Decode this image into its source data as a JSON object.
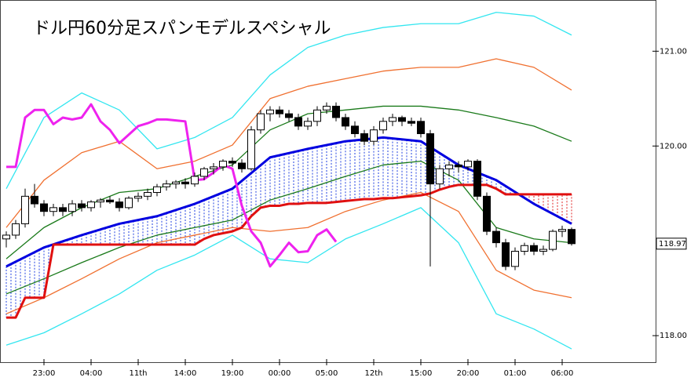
{
  "chart_data": {
    "type": "candlestick",
    "title": "ドル円60分足スパンモデルスペシャル",
    "categories": [
      null,
      null,
      null,
      null,
      "23:00",
      null,
      null,
      null,
      null,
      "04:00",
      null,
      null,
      null,
      null,
      "11th",
      null,
      null,
      null,
      null,
      "14:00",
      null,
      null,
      null,
      null,
      "19:00",
      null,
      null,
      null,
      null,
      "00:00",
      null,
      null,
      null,
      null,
      "05:00",
      null,
      null,
      null,
      null,
      "12th",
      null,
      null,
      null,
      null,
      "15:00",
      null,
      null,
      null,
      null,
      "20:00",
      null,
      null,
      null,
      null,
      "01:00",
      null,
      null,
      null,
      null,
      "06:00",
      null
    ],
    "open": [
      119.02,
      119.06,
      119.18,
      119.47,
      119.39,
      119.31,
      119.35,
      119.31,
      119.39,
      119.35,
      119.41,
      119.43,
      119.41,
      119.35,
      119.45,
      119.47,
      119.51,
      119.57,
      119.6,
      119.62,
      119.6,
      119.68,
      119.76,
      119.78,
      119.84,
      119.82,
      119.76,
      120.17,
      120.34,
      120.38,
      120.34,
      120.3,
      120.21,
      120.26,
      120.38,
      120.42,
      120.3,
      120.21,
      120.13,
      120.05,
      120.17,
      120.26,
      120.3,
      120.26,
      120.26,
      120.13,
      119.6,
      119.76,
      119.8,
      119.78,
      119.84,
      119.47,
      119.1,
      118.98,
      118.73,
      118.89,
      118.95,
      118.89,
      118.91,
      119.1,
      119.12
    ],
    "high": [
      119.1,
      119.22,
      119.55,
      119.6,
      119.43,
      119.39,
      119.39,
      119.43,
      119.43,
      119.43,
      119.45,
      119.47,
      119.45,
      119.47,
      119.51,
      119.55,
      119.6,
      119.64,
      119.64,
      119.66,
      119.72,
      119.78,
      119.82,
      119.86,
      119.88,
      119.86,
      120.21,
      120.38,
      120.42,
      120.42,
      120.38,
      120.34,
      120.3,
      120.42,
      120.46,
      120.46,
      120.34,
      120.26,
      120.17,
      120.21,
      120.3,
      120.34,
      120.32,
      120.3,
      120.3,
      120.17,
      119.8,
      119.84,
      119.84,
      119.86,
      119.86,
      119.51,
      119.14,
      119.02,
      118.93,
      118.98,
      118.98,
      118.95,
      119.12,
      119.16,
      119.14
    ],
    "low": [
      118.93,
      119.02,
      119.14,
      119.35,
      119.26,
      119.26,
      119.26,
      119.26,
      119.31,
      119.31,
      119.35,
      119.39,
      119.31,
      119.33,
      119.41,
      119.43,
      119.47,
      119.53,
      119.55,
      119.55,
      119.57,
      119.64,
      119.7,
      119.74,
      119.78,
      119.72,
      119.74,
      120.13,
      120.26,
      120.3,
      120.26,
      120.17,
      120.17,
      120.21,
      120.34,
      120.26,
      120.17,
      120.09,
      120.01,
      120.01,
      120.13,
      120.21,
      120.21,
      120.21,
      120.09,
      118.73,
      119.55,
      119.68,
      119.72,
      119.74,
      119.43,
      119.06,
      118.93,
      118.69,
      118.69,
      118.85,
      118.85,
      118.85,
      118.89,
      119.04,
      118.95
    ],
    "close": [
      119.06,
      119.18,
      119.47,
      119.39,
      119.31,
      119.35,
      119.31,
      119.39,
      119.35,
      119.41,
      119.43,
      119.41,
      119.35,
      119.45,
      119.47,
      119.51,
      119.57,
      119.6,
      119.62,
      119.6,
      119.68,
      119.76,
      119.78,
      119.84,
      119.82,
      119.76,
      120.17,
      120.34,
      120.38,
      120.34,
      120.3,
      120.21,
      120.26,
      120.38,
      120.42,
      120.3,
      120.21,
      120.13,
      120.05,
      120.17,
      120.26,
      120.3,
      120.26,
      120.24,
      120.13,
      119.6,
      119.76,
      119.8,
      119.78,
      119.84,
      119.47,
      119.1,
      118.98,
      118.73,
      118.89,
      118.95,
      118.89,
      118.91,
      119.1,
      119.12,
      118.97
    ],
    "series": [
      {
        "color": "#33e6f0",
        "x": [
          0,
          4,
          8,
          12,
          16,
          20,
          24,
          28,
          32,
          36,
          40,
          44,
          48,
          52,
          56,
          60
        ],
        "values": [
          119.55,
          120.3,
          120.56,
          120.38,
          119.97,
          120.09,
          120.3,
          120.75,
          121.04,
          121.17,
          121.25,
          121.29,
          121.29,
          121.41,
          121.37,
          121.17
        ]
      },
      {
        "color": "#f07030",
        "x": [
          0,
          4,
          8,
          12,
          16,
          20,
          24,
          28,
          32,
          36,
          40,
          44,
          48,
          52,
          56,
          60
        ],
        "values": [
          119.14,
          119.64,
          119.93,
          120.05,
          119.76,
          119.84,
          120.01,
          120.5,
          120.63,
          120.71,
          120.79,
          120.83,
          120.83,
          120.92,
          120.83,
          120.59
        ]
      },
      {
        "color": "#1a7a1a",
        "x": [
          0,
          4,
          8,
          12,
          16,
          20,
          24,
          28,
          32,
          36,
          40,
          44,
          48,
          52,
          56,
          60
        ],
        "values": [
          118.81,
          119.14,
          119.35,
          119.51,
          119.55,
          119.68,
          119.8,
          120.17,
          120.34,
          120.38,
          120.42,
          120.42,
          120.38,
          120.3,
          120.21,
          120.05
        ]
      },
      {
        "color": "#2060e0",
        "x": [
          0,
          4,
          8,
          12,
          16,
          20,
          24,
          28,
          32,
          36,
          40,
          44,
          48,
          52,
          56,
          60
        ],
        "values": [
          118.73,
          118.93,
          119.06,
          119.18,
          119.26,
          119.39,
          119.55,
          119.88,
          119.97,
          120.05,
          120.09,
          120.05,
          119.8,
          119.64,
          119.39,
          119.18
        ]
      },
      {
        "color": "#1a7a1a",
        "x": [
          0,
          4,
          8,
          12,
          16,
          20,
          24,
          28,
          32,
          36,
          40,
          44,
          48,
          52,
          56,
          60
        ],
        "values": [
          118.44,
          118.6,
          118.77,
          118.93,
          119.06,
          119.14,
          119.22,
          119.43,
          119.55,
          119.68,
          119.8,
          119.84,
          119.64,
          119.14,
          119.02,
          118.98
        ]
      },
      {
        "color": "#f07030",
        "x": [
          0,
          4,
          8,
          12,
          16,
          20,
          24,
          28,
          32,
          36,
          40,
          44,
          48,
          52,
          56,
          60
        ],
        "values": [
          118.23,
          118.4,
          118.6,
          118.81,
          118.98,
          119.06,
          119.14,
          119.1,
          119.14,
          119.31,
          119.43,
          119.51,
          119.31,
          118.69,
          118.48,
          118.4
        ]
      },
      {
        "color": "#33e6f0",
        "x": [
          0,
          4,
          8,
          12,
          16,
          20,
          24,
          28,
          32,
          36,
          40,
          44,
          48,
          52,
          56,
          60
        ],
        "values": [
          117.9,
          118.03,
          118.23,
          118.44,
          118.69,
          118.85,
          119.06,
          118.81,
          118.77,
          119.02,
          119.18,
          119.35,
          118.98,
          118.23,
          118.07,
          117.86
        ]
      },
      {
        "color": "#0000e0",
        "x": [
          0,
          4,
          8,
          12,
          16,
          20,
          24,
          28,
          32,
          36,
          40,
          44,
          48,
          52,
          56,
          60
        ],
        "values": [
          118.73,
          118.93,
          119.06,
          119.18,
          119.26,
          119.39,
          119.55,
          119.88,
          119.97,
          120.05,
          120.09,
          120.05,
          119.8,
          119.64,
          119.39,
          119.18
        ]
      },
      {
        "color": "#e01010",
        "values": [
          118.19,
          118.19,
          118.4,
          118.4,
          118.4,
          118.96,
          118.96,
          118.96,
          118.96,
          118.96,
          118.96,
          118.96,
          118.96,
          118.96,
          118.96,
          118.96,
          118.96,
          118.96,
          118.96,
          118.96,
          118.96,
          119.02,
          119.06,
          119.08,
          119.1,
          119.14,
          119.26,
          119.35,
          119.37,
          119.37,
          119.39,
          119.39,
          119.4,
          119.4,
          119.4,
          119.41,
          119.42,
          119.43,
          119.44,
          119.44,
          119.45,
          119.45,
          119.46,
          119.47,
          119.48,
          119.5,
          119.54,
          119.57,
          119.59,
          119.59,
          119.59,
          119.59,
          119.55,
          119.49,
          119.49,
          119.49,
          119.49,
          119.49,
          119.49,
          119.49,
          119.49
        ]
      },
      {
        "color": "#ee22ee",
        "values": [
          119.78,
          119.78,
          120.3,
          120.38,
          120.38,
          120.23,
          120.3,
          120.28,
          120.3,
          120.44,
          120.26,
          120.17,
          120.03,
          120.12,
          120.21,
          120.24,
          120.28,
          120.28,
          120.27,
          120.26,
          119.64,
          119.65,
          119.72,
          119.8,
          119.76,
          119.37,
          119.1,
          118.98,
          118.73,
          118.85,
          118.98,
          118.88,
          118.89,
          119.06,
          119.12,
          118.99,
          null,
          null,
          null,
          null,
          null,
          null,
          null,
          null,
          null,
          null,
          null,
          null,
          null,
          null,
          null,
          null,
          null,
          null,
          null,
          null,
          null,
          null,
          null,
          null,
          null
        ]
      }
    ],
    "ylim": [
      117.72,
      121.54
    ],
    "yticks": [
      {
        "value": 118,
        "label": "118.00"
      },
      {
        "value": 120,
        "label": "120.00"
      },
      {
        "value": 121,
        "label": "121.00"
      }
    ],
    "last_price": {
      "value": 118.97,
      "label": "118.97"
    }
  }
}
